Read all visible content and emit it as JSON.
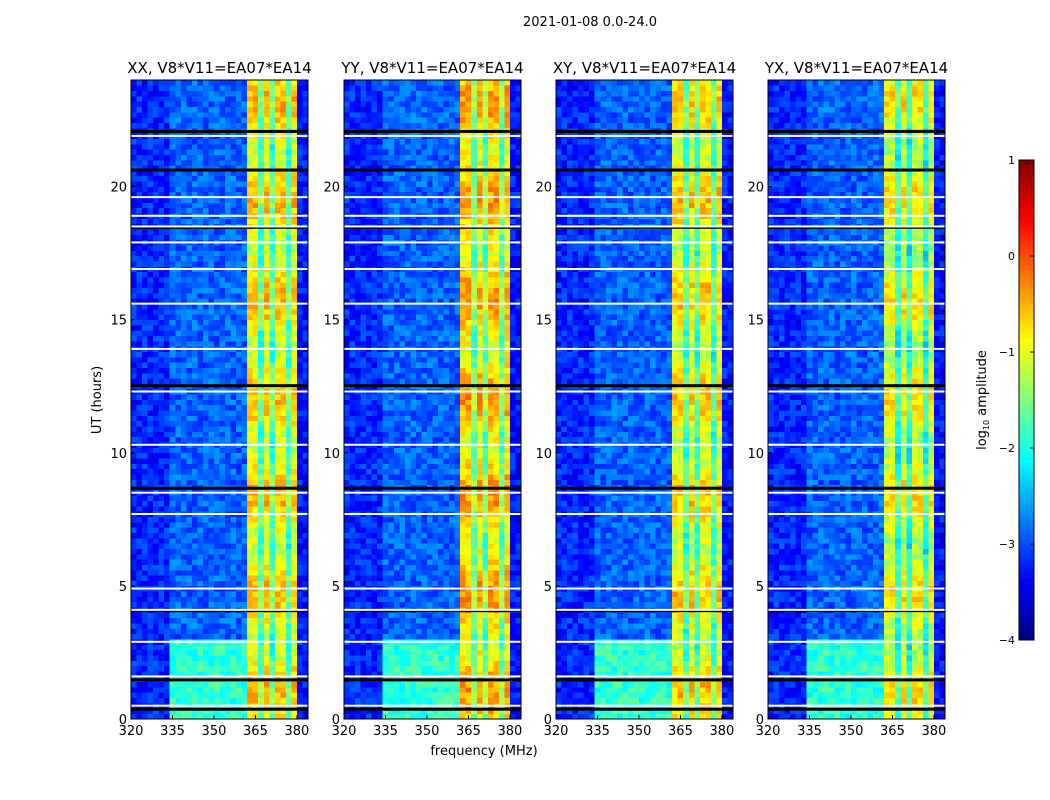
{
  "chart_data": {
    "type": "heatmap",
    "title": "2021-01-08 0.0-24.0",
    "xlabel": "frequency (MHz)",
    "ylabel": "UT (hours)",
    "xlim": [
      320,
      384
    ],
    "ylim": [
      0,
      24
    ],
    "xticks": [
      "320",
      "335",
      "350",
      "365",
      "380"
    ],
    "xtick_values": [
      320,
      335,
      350,
      365,
      380
    ],
    "yticks": [
      "0",
      "5",
      "10",
      "15",
      "20"
    ],
    "ytick_values": [
      0,
      5,
      10,
      15,
      20
    ],
    "colorbar": {
      "label": "log10 amplitude",
      "label_main": "log",
      "label_sub": "10",
      "label_rest": " amplitude",
      "range": [
        -4,
        1
      ],
      "ticks": [
        "1",
        "0",
        "−1",
        "−2",
        "−3",
        "−4"
      ],
      "tick_values": [
        1,
        0,
        -1,
        -2,
        -3,
        -4
      ],
      "colormap": "jet"
    },
    "panels": [
      {
        "title": "XX, V8*V11=EA07*EA14",
        "offset": 0.0
      },
      {
        "title": "YY, V8*V11=EA07*EA14",
        "offset": 0.15
      },
      {
        "title": "XY, V8*V11=EA07*EA14",
        "offset": -0.05
      },
      {
        "title": "YX, V8*V11=EA07*EA14",
        "offset": -0.2
      }
    ],
    "spectral_profile_log_amp": {
      "bands_mhz": [
        [
          320,
          335,
          -3.2
        ],
        [
          335,
          363,
          -2.9
        ],
        [
          363,
          380,
          -0.8
        ],
        [
          380,
          384,
          -3.3
        ]
      ],
      "early_hours_broadband": {
        "until_hour": 3.0,
        "band": [
          335,
          363
        ],
        "value": -1.9
      },
      "rfi_channels_mhz": [
        366.5,
        371.5,
        377
      ]
    },
    "flagged_white_hours": [
      0.5,
      1.6,
      2.9,
      4.1,
      4.9,
      7.7,
      8.5,
      10.3,
      12.3,
      13.9,
      15.6,
      16.9,
      17.9,
      18.5,
      18.9,
      19.6,
      21.9
    ],
    "flagged_black_hours": [
      0.35,
      1.45,
      4.05,
      8.65,
      12.5,
      18.45,
      20.6,
      22.05
    ]
  }
}
